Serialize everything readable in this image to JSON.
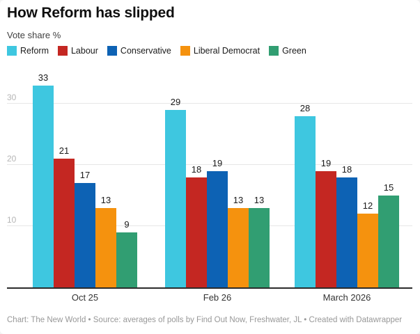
{
  "header": {
    "title": "How Reform has slipped",
    "subtitle": "Vote share %"
  },
  "footer": {
    "credit": "Chart: The New World • Source: averages of polls by Find Out Now, Freshwater, JL • Created with Datawrapper"
  },
  "chart_data": {
    "type": "bar",
    "title": "How Reform has slipped",
    "subtitle": "Vote share %",
    "categories": [
      "Oct 25",
      "Feb 26",
      "March 2026"
    ],
    "series": [
      {
        "name": "Reform",
        "color": "#3EC7E0",
        "values": [
          33,
          29,
          28
        ]
      },
      {
        "name": "Labour",
        "color": "#C42722",
        "values": [
          21,
          18,
          19
        ]
      },
      {
        "name": "Conservative",
        "color": "#0D62B4",
        "values": [
          17,
          19,
          18
        ]
      },
      {
        "name": "Liberal Democrat",
        "color": "#F5920E",
        "values": [
          13,
          13,
          12
        ]
      },
      {
        "name": "Green",
        "color": "#319E72",
        "values": [
          9,
          13,
          15
        ]
      }
    ],
    "ylabel": "Vote share %",
    "yticks": [
      10,
      20,
      30
    ],
    "ylim": [
      0,
      36
    ],
    "grid": true,
    "legend_position": "top",
    "value_labels": true
  },
  "colors": {
    "grid": "#E6E6E6",
    "axis_line": "#2B2B2B",
    "tick_label": "#B5B5B5",
    "value_label": "#1A1A1A",
    "footer_text": "#989898"
  }
}
